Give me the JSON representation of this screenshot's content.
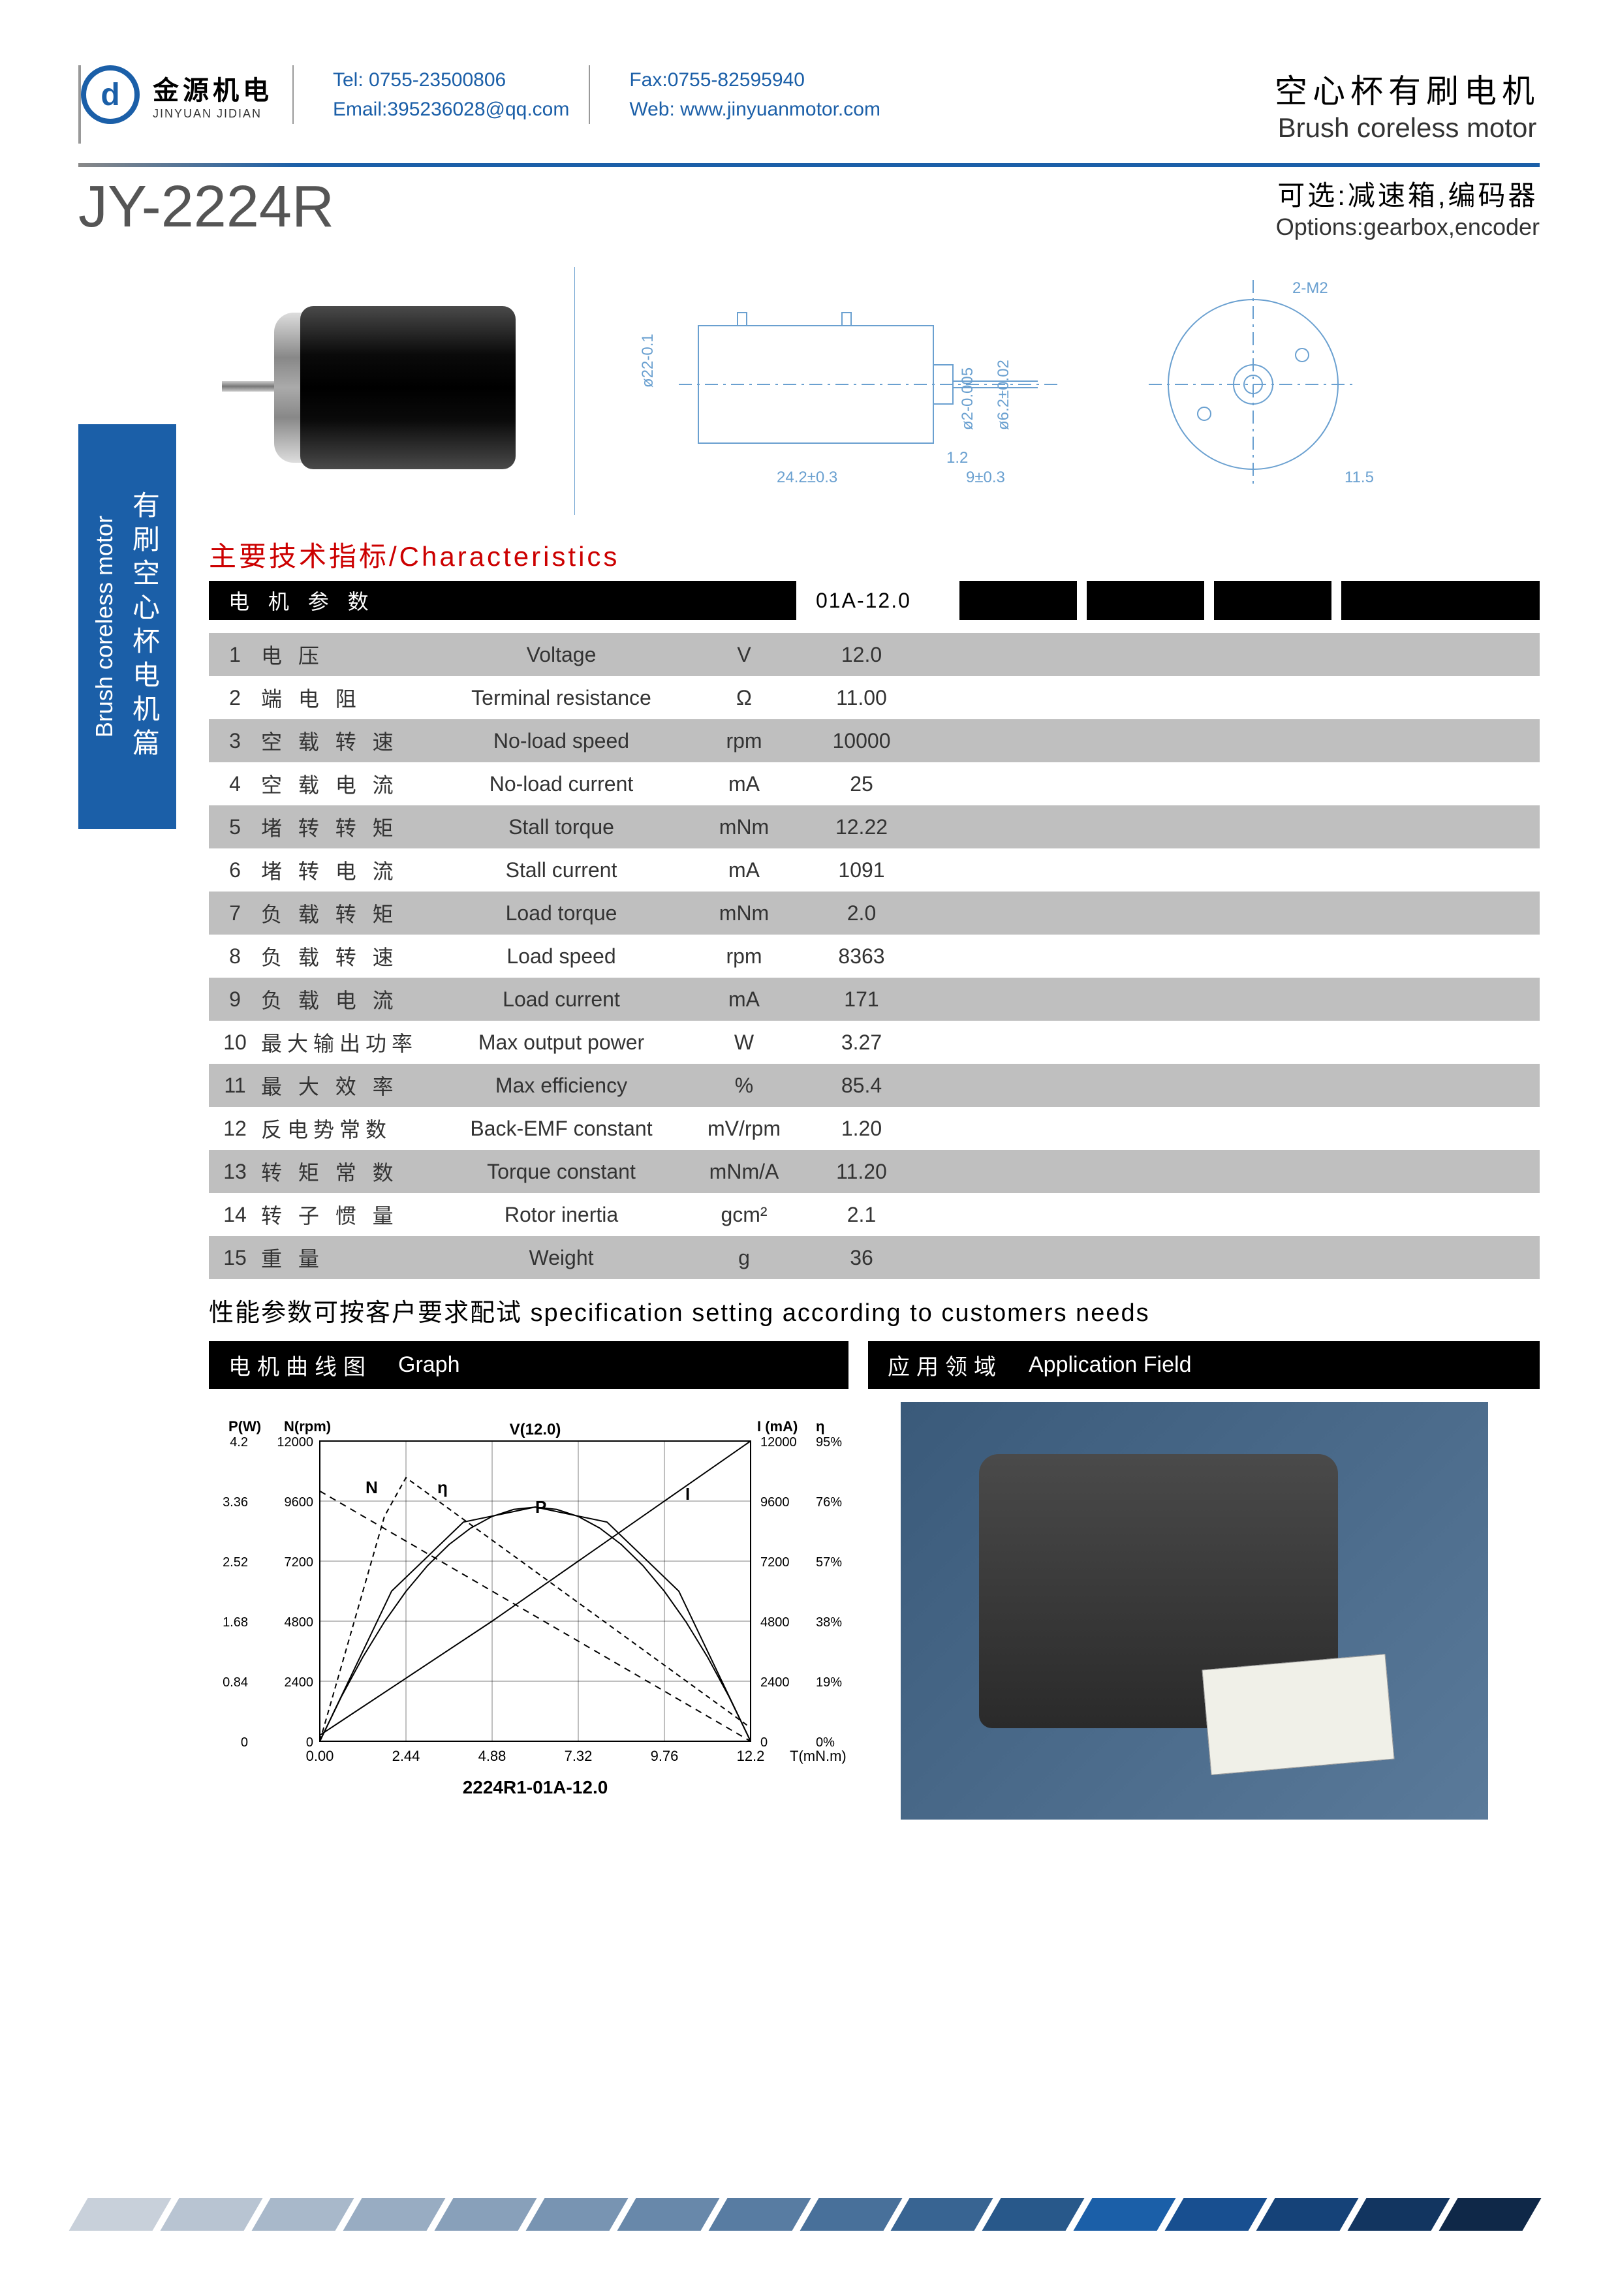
{
  "header": {
    "logo_cn": "金源机电",
    "logo_en": "JINYUAN JIDIAN",
    "tel": "Tel: 0755-23500806",
    "email": "Email:395236028@qq.com",
    "fax": "Fax:0755-82595940",
    "web": "Web: www.jinyuanmotor.com",
    "title_cn": "空心杯有刷电机",
    "title_en": "Brush coreless motor"
  },
  "model": "JY-2224R",
  "options": {
    "cn": "可选:减速箱,编码器",
    "en": "Options:gearbox,encoder"
  },
  "side_tab": {
    "en": "Brush coreless motor",
    "cn": "有刷空心杯电机篇"
  },
  "drawing": {
    "dim_body_len": "24.2±0.3",
    "dim_shaft_len": "9±0.3",
    "dim_shaft_tip": "1.2",
    "dim_dia": "ø22-0.1",
    "dim_shaft_dia": "ø2-0.005",
    "dim_boss_dia": "ø6.2±0.02",
    "front_hole": "2-M2",
    "front_offset": "11.5"
  },
  "characteristics_title": "主要技术指标/Characteristics",
  "table_header": {
    "label": "电 机 参 数",
    "code": "01A-12.0"
  },
  "specs": [
    {
      "n": "1",
      "cn": "电 压",
      "en": "Voltage",
      "unit": "V",
      "val": "12.0"
    },
    {
      "n": "2",
      "cn": "端 电 阻",
      "en": "Terminal resistance",
      "unit": "Ω",
      "val": "11.00"
    },
    {
      "n": "3",
      "cn": "空 载 转 速",
      "en": "No-load speed",
      "unit": "rpm",
      "val": "10000"
    },
    {
      "n": "4",
      "cn": "空 载 电 流",
      "en": "No-load current",
      "unit": "mA",
      "val": "25"
    },
    {
      "n": "5",
      "cn": "堵 转 转 矩",
      "en": "Stall torque",
      "unit": "mNm",
      "val": "12.22"
    },
    {
      "n": "6",
      "cn": "堵 转 电 流",
      "en": "Stall current",
      "unit": "mA",
      "val": "1091"
    },
    {
      "n": "7",
      "cn": "负 载 转 矩",
      "en": "Load torque",
      "unit": "mNm",
      "val": "2.0"
    },
    {
      "n": "8",
      "cn": "负 载 转 速",
      "en": "Load speed",
      "unit": "rpm",
      "val": "8363"
    },
    {
      "n": "9",
      "cn": "负 载 电 流",
      "en": "Load current",
      "unit": "mA",
      "val": "171"
    },
    {
      "n": "10",
      "cn": "最大输出功率",
      "en": "Max output power",
      "unit": "W",
      "val": "3.27"
    },
    {
      "n": "11",
      "cn": "最 大 效 率",
      "en": "Max efficiency",
      "unit": "%",
      "val": "85.4"
    },
    {
      "n": "12",
      "cn": "反电势常数",
      "en": "Back-EMF constant",
      "unit": "mV/rpm",
      "val": "1.20"
    },
    {
      "n": "13",
      "cn": "转 矩 常 数",
      "en": "Torque constant",
      "unit": "mNm/A",
      "val": "11.20"
    },
    {
      "n": "14",
      "cn": "转 子 惯 量",
      "en": "Rotor inertia",
      "unit": "gcm²",
      "val": "2.1"
    },
    {
      "n": "15",
      "cn": "重 量",
      "en": "Weight",
      "unit": "g",
      "val": "36"
    }
  ],
  "note": "性能参数可按客户要求配试  specification setting according to customers needs",
  "graph_section": {
    "cn": "电机曲线图",
    "en": "Graph"
  },
  "app_section": {
    "cn": "应用领域",
    "en": "Application Field"
  },
  "graph": {
    "caption": "2224R1-01A-12.0",
    "voltage_label": "V(12.0)",
    "axis_P": {
      "label": "P(W)",
      "ticks": [
        "0",
        "0.84",
        "1.68",
        "2.52",
        "3.36",
        "4.2"
      ]
    },
    "axis_N": {
      "label": "N(rpm)",
      "ticks": [
        "0",
        "2400",
        "4800",
        "7200",
        "9600",
        "12000"
      ]
    },
    "axis_I": {
      "label": "I (mA)",
      "ticks": [
        "0",
        "2400",
        "4800",
        "7200",
        "9600",
        "12000"
      ]
    },
    "axis_eta": {
      "label": "η",
      "ticks": [
        "0%",
        "19%",
        "38%",
        "57%",
        "76%",
        "95%"
      ]
    },
    "axis_T": {
      "label": "T(mN.m)",
      "ticks": [
        "0.00",
        "2.44",
        "4.88",
        "7.32",
        "9.76",
        "12.2"
      ]
    },
    "curve_labels": {
      "N": "N",
      "eta": "η",
      "P": "P",
      "I": "I"
    },
    "colors": {
      "axis": "#000000",
      "grid": "#000000",
      "N_line": "#000000",
      "I_line": "#000000",
      "P_line": "#000000",
      "eta_line": "#000000"
    },
    "line_styles": {
      "N": "dashed",
      "I": "solid",
      "P": "solid",
      "eta": "dashed"
    }
  },
  "footer_stripe_colors": [
    "#c8d0da",
    "#b8c4d2",
    "#a8b8ca",
    "#98acc2",
    "#88a0ba",
    "#7894b2",
    "#6888aa",
    "#587ca2",
    "#48709a",
    "#386492",
    "#28588a",
    "#1b5fa8",
    "#184f90",
    "#154278",
    "#123560",
    "#0f2848"
  ]
}
